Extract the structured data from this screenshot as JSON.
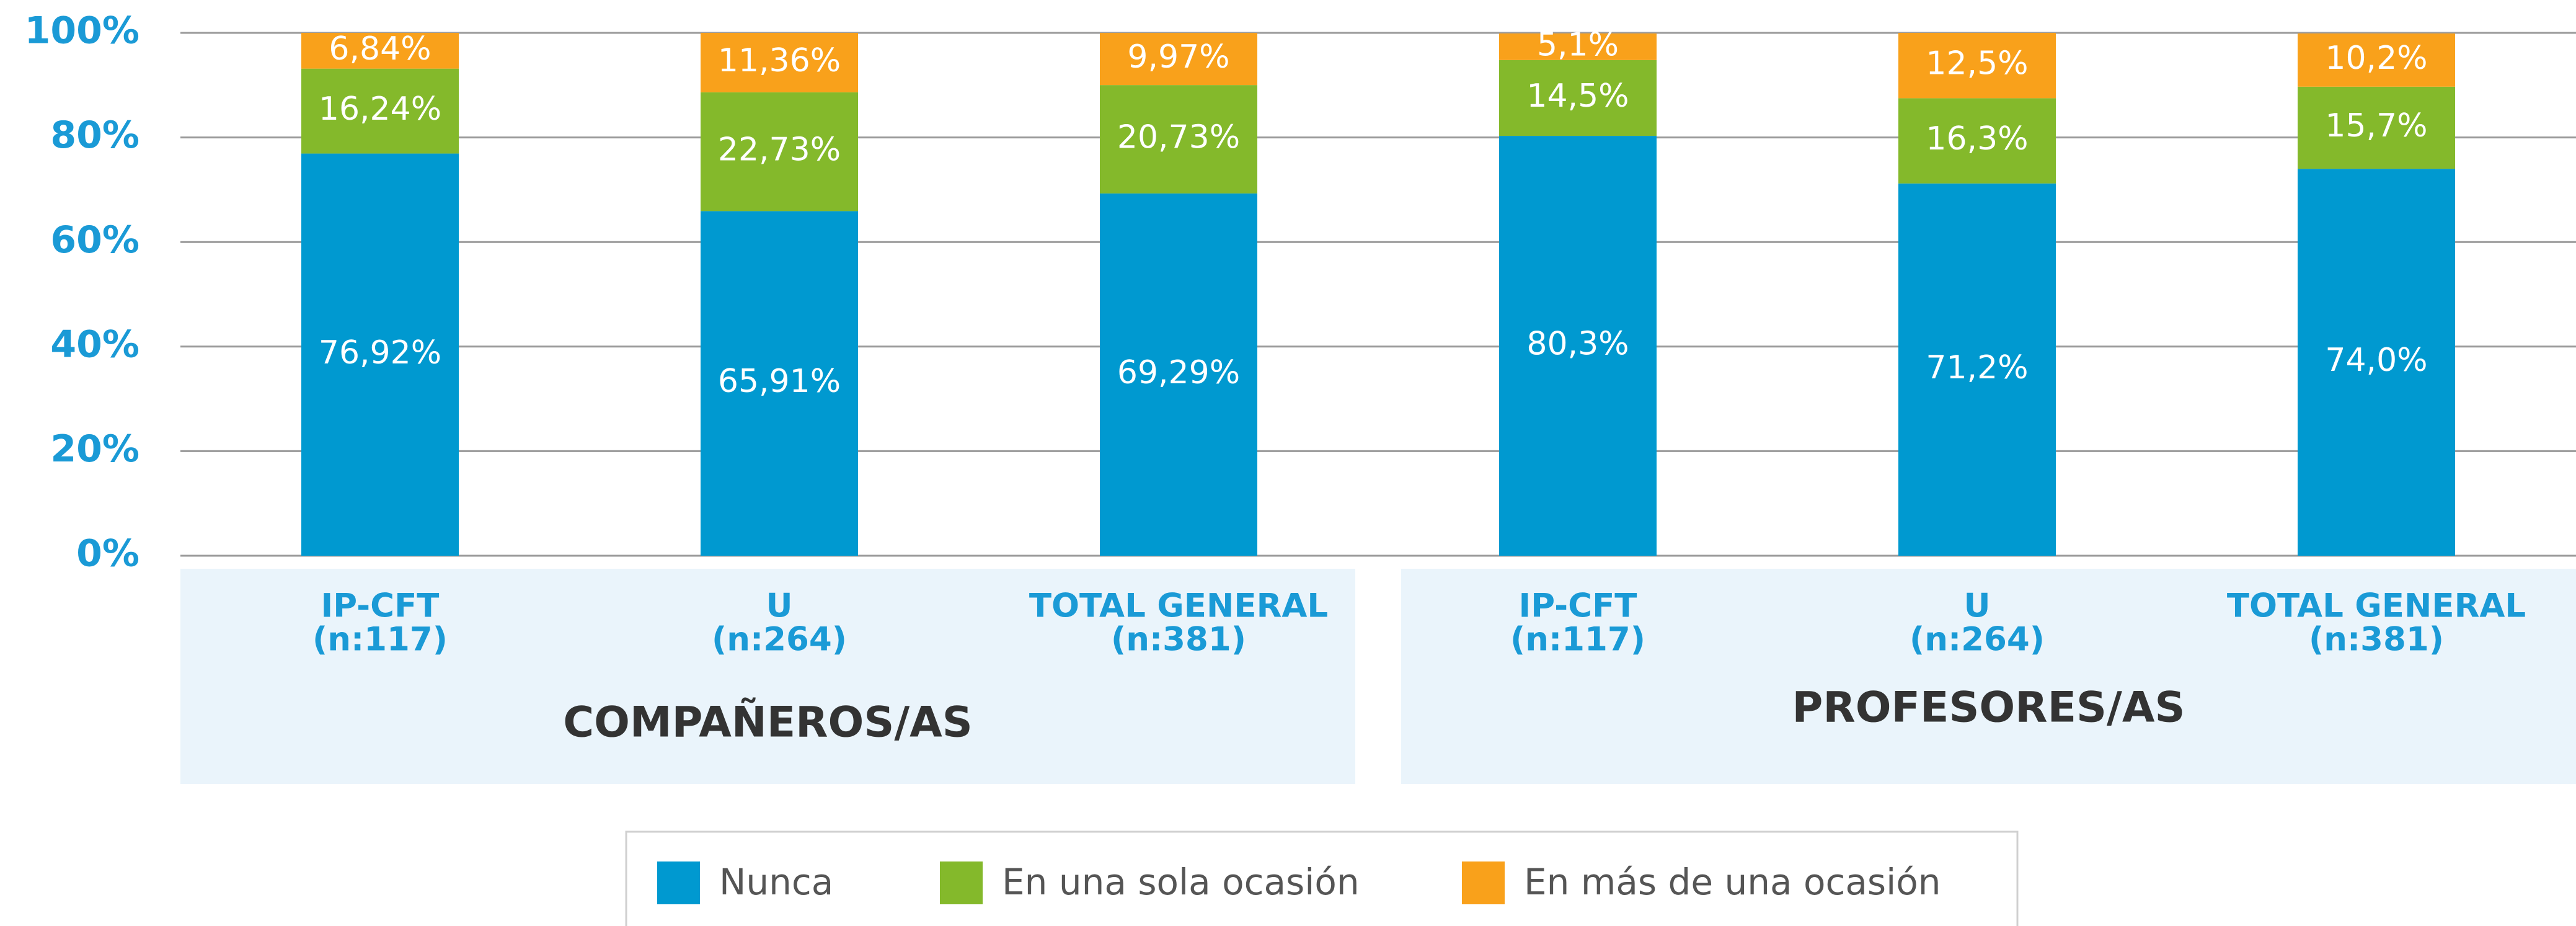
{
  "chart_data": {
    "type": "stacked_bar",
    "categories": [
      [
        "IP-CFT",
        "(n:117)"
      ],
      [
        "U",
        "(n:264)"
      ],
      [
        "TOTAL GENERAL",
        "(n:381)"
      ],
      [
        "IP-CFT",
        "(n:117)"
      ],
      [
        "U",
        "(n:264)"
      ],
      [
        "TOTAL GENERAL",
        "(n:381)"
      ]
    ],
    "groups": [
      "COMPAÑEROS/AS",
      "PROFESORES/AS"
    ],
    "series": [
      {
        "name": "Nunca",
        "color": "#0099d0",
        "values": [
          76.92,
          65.91,
          69.29,
          80.3,
          71.2,
          74.0
        ],
        "value_labels": [
          "76,92%",
          "65,91%",
          "69,29%",
          "80,3%",
          "71,2%",
          "74,0%"
        ]
      },
      {
        "name": "En una sola ocasión",
        "color": "#84b92b",
        "values": [
          16.24,
          22.73,
          20.73,
          14.5,
          16.3,
          15.7
        ],
        "value_labels": [
          "16,24%",
          "22,73%",
          "20,73%",
          "14,5%",
          "16,3%",
          "15,7%"
        ]
      },
      {
        "name": "En más de una ocasión",
        "color": "#f9a11b",
        "values": [
          6.84,
          11.36,
          9.97,
          5.1,
          12.5,
          10.2
        ],
        "value_labels": [
          "6,84%",
          "11,36%",
          "9,97%",
          "5,1%",
          "12,5%",
          "10,2%"
        ]
      }
    ],
    "ylim": [
      0,
      100
    ],
    "yticks": [
      {
        "value": 0,
        "label": "0%"
      },
      {
        "value": 20,
        "label": "20%"
      },
      {
        "value": 40,
        "label": "40%"
      },
      {
        "value": 60,
        "label": "60%"
      },
      {
        "value": 80,
        "label": "80%"
      },
      {
        "value": 100,
        "label": "100%"
      }
    ],
    "grid": true,
    "legend": "bottom"
  }
}
